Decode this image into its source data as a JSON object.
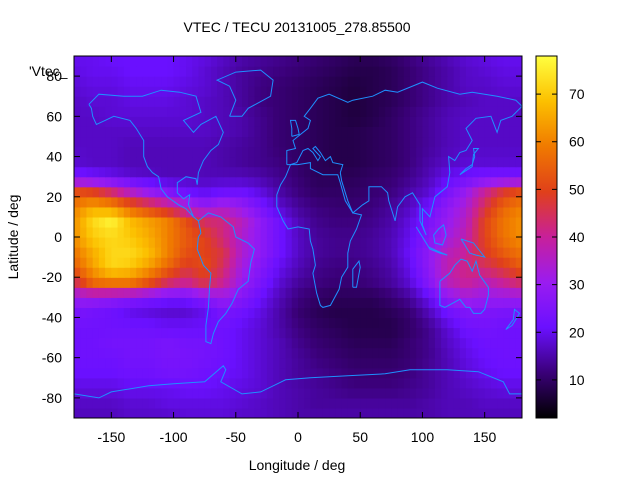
{
  "chart_data": {
    "type": "heatmap",
    "title": "VTEC / TECU 20131005_278.85500",
    "xlabel": "Longitude / deg",
    "ylabel": "Latitude / deg",
    "key_label": "'Vtec_",
    "xlim": [
      -180,
      180
    ],
    "ylim": [
      -90,
      90
    ],
    "xticks": [
      -150,
      -100,
      -50,
      0,
      50,
      100,
      150
    ],
    "yticks": [
      -80,
      -60,
      -40,
      -20,
      0,
      20,
      40,
      60,
      80
    ],
    "colorbar": {
      "range": [
        2,
        78
      ],
      "ticks": [
        10,
        20,
        30,
        40,
        50,
        60,
        70
      ],
      "palette": [
        "#000000",
        "#3a0078",
        "#6a10ff",
        "#9a1cf0",
        "#c8209a",
        "#e0401a",
        "#f07a00",
        "#fcc000",
        "#ffff40"
      ]
    },
    "grid": false,
    "coastline_color": "#1e90ff",
    "lon": [
      -180,
      -165,
      -150,
      -135,
      -120,
      -105,
      -90,
      -75,
      -60,
      -45,
      -30,
      -15,
      0,
      15,
      30,
      45,
      60,
      75,
      90,
      105,
      120,
      135,
      150,
      165,
      180
    ],
    "lat": [
      -90,
      -82.5,
      -75,
      -67.5,
      -60,
      -52.5,
      -45,
      -37.5,
      -30,
      -22.5,
      -15,
      -7.5,
      0,
      7.5,
      15,
      22.5,
      30,
      37.5,
      45,
      52.5,
      60,
      67.5,
      75,
      82.5,
      90
    ],
    "values": [
      [
        16,
        16,
        16,
        17,
        17,
        17,
        18,
        18,
        18,
        17,
        17,
        16,
        15,
        15,
        15,
        15,
        15,
        15,
        15,
        15,
        16,
        16,
        16,
        16,
        16
      ],
      [
        17,
        17,
        17,
        18,
        18,
        19,
        19,
        19,
        19,
        18,
        17,
        16,
        15,
        14,
        14,
        14,
        14,
        14,
        14,
        15,
        16,
        16,
        17,
        17,
        17
      ],
      [
        19,
        19,
        19,
        20,
        20,
        20,
        21,
        21,
        20,
        19,
        18,
        16,
        15,
        14,
        13,
        12,
        12,
        12,
        13,
        14,
        16,
        17,
        18,
        19,
        19
      ],
      [
        21,
        21,
        21,
        22,
        22,
        23,
        23,
        22,
        21,
        20,
        18,
        16,
        14,
        13,
        12,
        11,
        11,
        11,
        12,
        14,
        16,
        18,
        20,
        21,
        21
      ],
      [
        22,
        22,
        22,
        23,
        23,
        24,
        24,
        23,
        22,
        20,
        18,
        16,
        14,
        12,
        11,
        10,
        10,
        10,
        11,
        13,
        16,
        19,
        21,
        22,
        22
      ],
      [
        22,
        22,
        23,
        23,
        23,
        24,
        23,
        23,
        22,
        20,
        18,
        16,
        13,
        11,
        10,
        9,
        9,
        9,
        11,
        13,
        17,
        20,
        22,
        22,
        22
      ],
      [
        22,
        22,
        22,
        22,
        22,
        21,
        21,
        21,
        22,
        20,
        18,
        15,
        12,
        10,
        9,
        8,
        8,
        8,
        10,
        13,
        18,
        22,
        23,
        22,
        22
      ],
      [
        24,
        23,
        22,
        20,
        19,
        18,
        18,
        20,
        24,
        22,
        19,
        15,
        11,
        9,
        8,
        8,
        8,
        9,
        11,
        16,
        22,
        25,
        25,
        24,
        24
      ],
      [
        30,
        30,
        28,
        26,
        24,
        22,
        22,
        26,
        30,
        26,
        21,
        16,
        12,
        10,
        9,
        9,
        9,
        11,
        14,
        20,
        28,
        32,
        30,
        30,
        30
      ],
      [
        44,
        56,
        58,
        58,
        52,
        44,
        40,
        46,
        40,
        30,
        24,
        18,
        14,
        12,
        11,
        11,
        12,
        14,
        18,
        26,
        36,
        40,
        36,
        40,
        44
      ],
      [
        54,
        64,
        72,
        70,
        64,
        56,
        48,
        52,
        44,
        32,
        26,
        20,
        16,
        13,
        12,
        12,
        13,
        15,
        20,
        28,
        38,
        42,
        44,
        48,
        54
      ],
      [
        58,
        66,
        72,
        72,
        68,
        60,
        52,
        50,
        46,
        34,
        28,
        22,
        17,
        14,
        13,
        13,
        14,
        16,
        21,
        28,
        36,
        40,
        48,
        54,
        58
      ],
      [
        62,
        70,
        72,
        70,
        66,
        60,
        54,
        50,
        42,
        34,
        28,
        22,
        17,
        14,
        13,
        13,
        14,
        16,
        20,
        26,
        32,
        38,
        50,
        58,
        62
      ],
      [
        62,
        72,
        76,
        68,
        64,
        60,
        52,
        44,
        42,
        36,
        28,
        22,
        16,
        13,
        12,
        12,
        13,
        15,
        19,
        24,
        30,
        36,
        50,
        58,
        62
      ],
      [
        60,
        66,
        64,
        56,
        50,
        44,
        36,
        30,
        34,
        30,
        24,
        18,
        14,
        12,
        11,
        11,
        12,
        14,
        17,
        22,
        28,
        34,
        46,
        56,
        60
      ],
      [
        52,
        50,
        44,
        36,
        30,
        26,
        22,
        20,
        22,
        22,
        19,
        15,
        12,
        10,
        10,
        10,
        11,
        12,
        15,
        18,
        24,
        30,
        40,
        48,
        52
      ],
      [
        24,
        22,
        20,
        18,
        17,
        16,
        16,
        16,
        16,
        16,
        15,
        13,
        11,
        9,
        9,
        9,
        10,
        11,
        13,
        16,
        20,
        22,
        24,
        24,
        24
      ],
      [
        18,
        17,
        17,
        16,
        16,
        16,
        16,
        16,
        15,
        14,
        13,
        12,
        10,
        9,
        8,
        8,
        9,
        10,
        12,
        15,
        17,
        18,
        18,
        18,
        18
      ],
      [
        17,
        17,
        17,
        16,
        16,
        16,
        16,
        16,
        15,
        14,
        13,
        11,
        10,
        9,
        8,
        8,
        9,
        10,
        12,
        14,
        16,
        17,
        17,
        17,
        17
      ],
      [
        17,
        17,
        17,
        17,
        17,
        17,
        17,
        17,
        16,
        15,
        13,
        11,
        10,
        9,
        8,
        8,
        9,
        10,
        12,
        14,
        16,
        17,
        17,
        17,
        17
      ],
      [
        17,
        17,
        18,
        18,
        18,
        18,
        18,
        17,
        16,
        15,
        13,
        11,
        10,
        9,
        8,
        7,
        8,
        10,
        12,
        14,
        16,
        17,
        17,
        17,
        17
      ],
      [
        17,
        18,
        18,
        19,
        19,
        19,
        18,
        17,
        16,
        14,
        12,
        11,
        10,
        9,
        8,
        7,
        8,
        9,
        11,
        13,
        15,
        16,
        17,
        17,
        17
      ],
      [
        18,
        19,
        19,
        20,
        20,
        20,
        19,
        18,
        16,
        14,
        12,
        11,
        10,
        9,
        8,
        7,
        8,
        9,
        11,
        13,
        15,
        17,
        17,
        18,
        18
      ],
      [
        19,
        20,
        20,
        21,
        21,
        21,
        20,
        18,
        16,
        14,
        13,
        12,
        11,
        10,
        9,
        8,
        8,
        9,
        11,
        13,
        15,
        17,
        18,
        19,
        19
      ],
      [
        20,
        20,
        21,
        21,
        21,
        21,
        20,
        19,
        17,
        15,
        14,
        13,
        12,
        11,
        10,
        9,
        9,
        10,
        12,
        14,
        16,
        18,
        19,
        20,
        20
      ]
    ]
  }
}
